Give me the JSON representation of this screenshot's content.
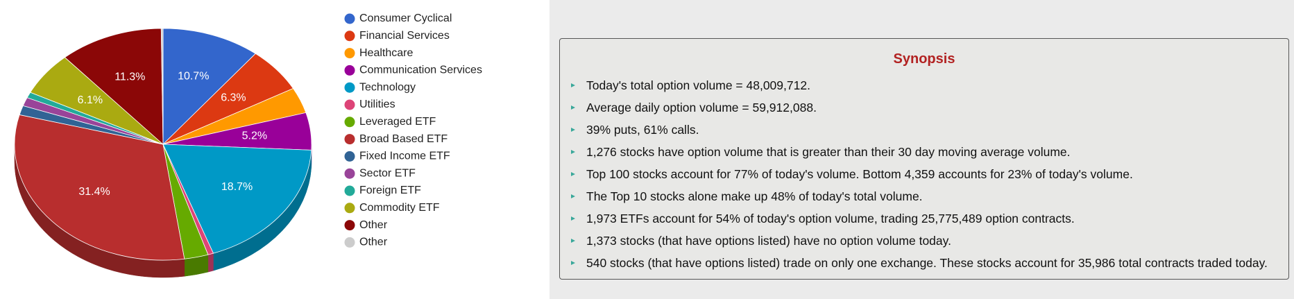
{
  "chart_data": {
    "type": "pie",
    "categories": [
      "Consumer Cyclical",
      "Financial Services",
      "Healthcare",
      "Communication Services",
      "Technology",
      "Utilities",
      "Leveraged ETF",
      "Broad Based ETF",
      "Fixed Income ETF",
      "Sector ETF",
      "Foreign ETF",
      "Commodity ETF",
      "Other",
      "Other"
    ],
    "values": [
      10.7,
      6.3,
      3.6,
      5.2,
      18.7,
      0.6,
      2.6,
      31.4,
      1.3,
      1.2,
      0.8,
      6.1,
      11.3,
      0.2
    ],
    "value_labels": [
      "10.7%",
      "6.3%",
      null,
      "5.2%",
      "18.7%",
      null,
      null,
      "31.4%",
      null,
      null,
      null,
      "6.1%",
      "11.3%",
      null
    ],
    "colors": [
      "#3366cc",
      "#dc3912",
      "#ff9900",
      "#990099",
      "#0099c6",
      "#dd4477",
      "#66aa00",
      "#b82e2e",
      "#316395",
      "#994499",
      "#22aa99",
      "#aaaa11",
      "#8b0707",
      "#cccccc"
    ],
    "legend": "right"
  },
  "synopsis": {
    "title": "Synopsis",
    "items": [
      "Today's total option volume = 48,009,712.",
      "Average daily option volume = 59,912,088.",
      "39% puts, 61% calls.",
      "1,276 stocks have option volume that is greater than their 30 day moving average volume.",
      "Top 100 stocks account for 77% of today's volume. Bottom 4,359 accounts for 23% of today's volume.",
      "The Top 10 stocks alone make up 48% of today's total volume.",
      "1,973 ETFs account for 54% of today's option volume, trading 25,775,489 option contracts.",
      "1,373 stocks (that have options listed) have no option volume today.",
      "540 stocks (that have options listed) trade on only one exchange. These stocks account for 35,986 total contracts traded today."
    ]
  }
}
